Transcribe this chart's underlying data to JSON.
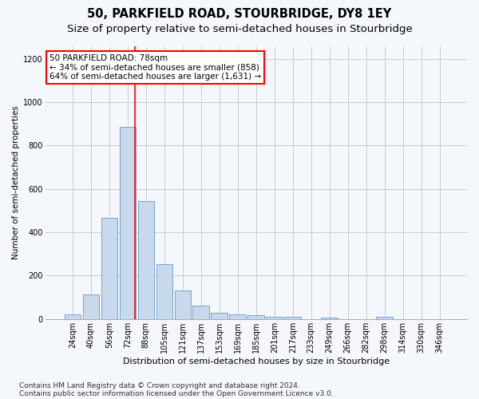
{
  "title": "50, PARKFIELD ROAD, STOURBRIDGE, DY8 1EY",
  "subtitle": "Size of property relative to semi-detached houses in Stourbridge",
  "xlabel": "Distribution of semi-detached houses by size in Stourbridge",
  "ylabel": "Number of semi-detached properties",
  "bar_labels": [
    "24sqm",
    "40sqm",
    "56sqm",
    "72sqm",
    "88sqm",
    "105sqm",
    "121sqm",
    "137sqm",
    "153sqm",
    "169sqm",
    "185sqm",
    "201sqm",
    "217sqm",
    "233sqm",
    "249sqm",
    "266sqm",
    "282sqm",
    "298sqm",
    "314sqm",
    "330sqm",
    "346sqm"
  ],
  "bar_values": [
    20,
    115,
    465,
    885,
    545,
    255,
    130,
    63,
    30,
    22,
    17,
    10,
    12,
    0,
    8,
    0,
    0,
    12,
    0,
    0,
    0
  ],
  "bar_color": "#c9d9ec",
  "bar_edge_color": "#6699cc",
  "grid_color": "#cccccc",
  "vline_color": "red",
  "annotation_text": "50 PARKFIELD ROAD: 78sqm\n← 34% of semi-detached houses are smaller (858)\n64% of semi-detached houses are larger (1,631) →",
  "annotation_box_color": "white",
  "annotation_box_edge_color": "red",
  "ylim": [
    0,
    1260
  ],
  "yticks": [
    0,
    200,
    400,
    600,
    800,
    1000,
    1200
  ],
  "footnote1": "Contains HM Land Registry data © Crown copyright and database right 2024.",
  "footnote2": "Contains public sector information licensed under the Open Government Licence v3.0.",
  "title_fontsize": 10.5,
  "subtitle_fontsize": 9.5,
  "xlabel_fontsize": 8,
  "ylabel_fontsize": 7.5,
  "tick_fontsize": 7,
  "annotation_fontsize": 7.5,
  "footnote_fontsize": 6.5,
  "background_color": "#f4f7fb"
}
